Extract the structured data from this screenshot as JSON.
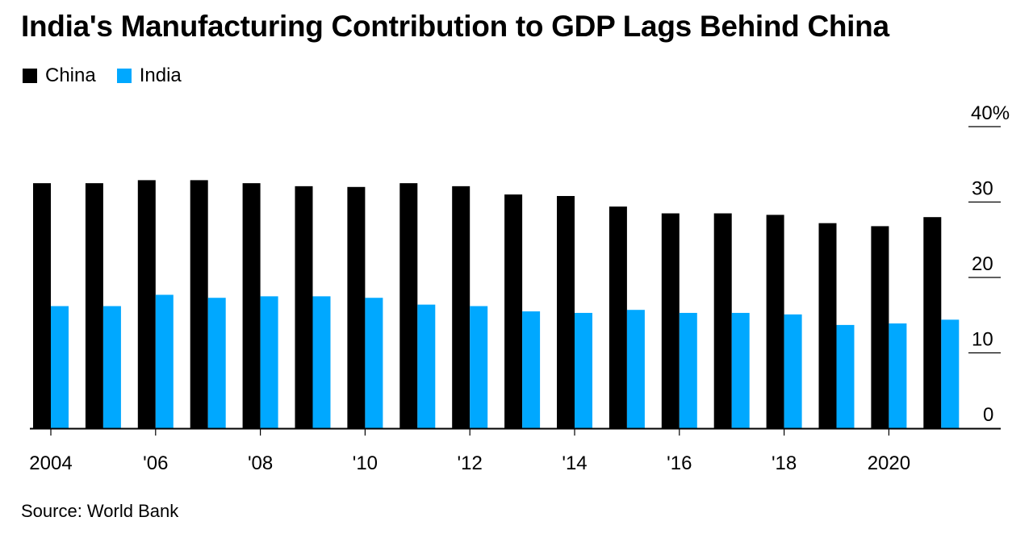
{
  "title": "India's Manufacturing Contribution to GDP Lags Behind China",
  "source": "Source: World Bank",
  "colors": {
    "china": "#000000",
    "india": "#00a8ff"
  },
  "chart_data": {
    "type": "bar",
    "title": "India's Manufacturing Contribution to GDP Lags Behind China",
    "categories": [
      "2004",
      "2005",
      "2006",
      "2007",
      "2008",
      "2009",
      "2010",
      "2011",
      "2012",
      "2013",
      "2014",
      "2015",
      "2016",
      "2017",
      "2018",
      "2019",
      "2020",
      "2021"
    ],
    "series": [
      {
        "name": "China",
        "values": [
          32.5,
          32.5,
          32.9,
          32.9,
          32.5,
          32.1,
          32.0,
          32.5,
          32.1,
          31.0,
          30.8,
          29.4,
          28.5,
          28.5,
          28.3,
          27.2,
          26.8,
          28.0
        ]
      },
      {
        "name": "India",
        "values": [
          16.2,
          16.2,
          17.7,
          17.3,
          17.5,
          17.5,
          17.3,
          16.4,
          16.2,
          15.5,
          15.3,
          15.7,
          15.3,
          15.3,
          15.1,
          13.7,
          13.9,
          14.4
        ]
      }
    ],
    "xlabel": "",
    "ylabel": "",
    "ylim": [
      0,
      40
    ],
    "yticks": [
      0,
      10,
      20,
      30,
      40
    ],
    "ytick_labels": [
      "0",
      "10",
      "20",
      "30",
      "40%"
    ],
    "xtick_labels": [
      {
        "index": 0,
        "label": "2004"
      },
      {
        "index": 2,
        "label": "'06"
      },
      {
        "index": 4,
        "label": "'08"
      },
      {
        "index": 6,
        "label": "'10"
      },
      {
        "index": 8,
        "label": "'12"
      },
      {
        "index": 10,
        "label": "'14"
      },
      {
        "index": 12,
        "label": "'16"
      },
      {
        "index": 14,
        "label": "'18"
      },
      {
        "index": 16,
        "label": "2020"
      }
    ],
    "legend_position": "top-left",
    "y_axis_side": "right",
    "grid": false
  }
}
